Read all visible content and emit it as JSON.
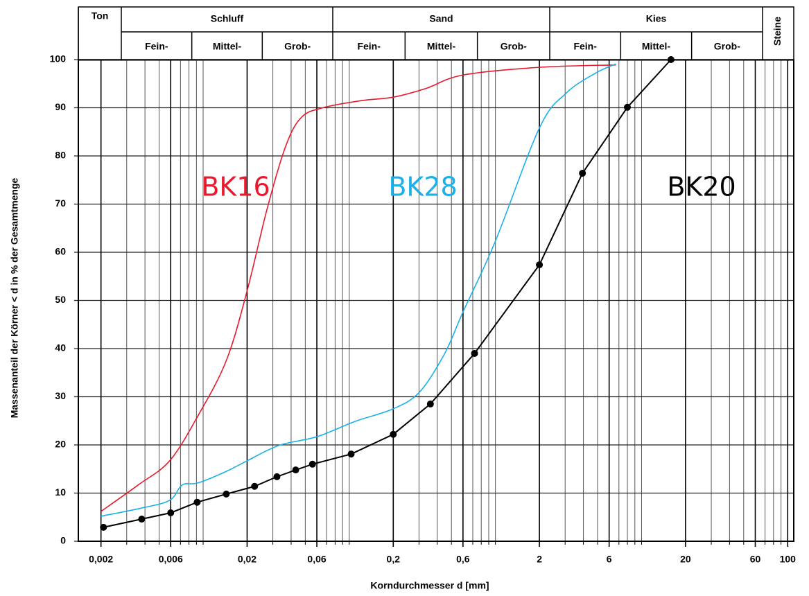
{
  "chart_data": {
    "type": "line",
    "x_label": "Korndurchmesser d [mm]",
    "y_label": "Massenanteil der Körner < d in % der Gesamtmenge",
    "log_x": true,
    "grid": true,
    "xlim": [
      0.0014,
      110
    ],
    "ylim": [
      0,
      100
    ],
    "xticks": [
      {
        "value": 0.002,
        "label": "0,002"
      },
      {
        "value": 0.006,
        "label": "0,006"
      },
      {
        "value": 0.02,
        "label": "0,02"
      },
      {
        "value": 0.06,
        "label": "0,06"
      },
      {
        "value": 0.2,
        "label": "0,2"
      },
      {
        "value": 0.6,
        "label": "0,6"
      },
      2,
      6,
      20,
      60,
      100
    ],
    "yticks": [
      0,
      10,
      20,
      30,
      40,
      50,
      60,
      70,
      80,
      90,
      100
    ],
    "soil_classes": [
      {
        "name": "Ton"
      },
      {
        "name": "Schluff",
        "subclasses": [
          "Fein-",
          "Mittel-",
          "Grob-"
        ]
      },
      {
        "name": "Sand",
        "subclasses": [
          "Fein-",
          "Mittel-",
          "Grob-"
        ]
      },
      {
        "name": "Kies",
        "subclasses": [
          "Fein-",
          "Mittel-",
          "Grob-"
        ]
      },
      {
        "name": "Steine"
      }
    ],
    "series": [
      {
        "name": "BK16",
        "color": "#e8192c",
        "markers": false,
        "x": [
          0.002,
          0.0036,
          0.0059,
          0.0092,
          0.0144,
          0.02,
          0.0274,
          0.0367,
          0.047,
          0.066,
          0.122,
          0.2,
          0.334,
          0.6,
          2,
          6.67
        ],
        "values": [
          6.2,
          11.7,
          16.7,
          26,
          37.5,
          52,
          69,
          82,
          88,
          90,
          91.5,
          92.2,
          94,
          96.8,
          98.4,
          98.9
        ]
      },
      {
        "name": "BK28",
        "color": "#1ab0e8",
        "markers": false,
        "x": [
          0.002,
          0.0038,
          0.0059,
          0.0072,
          0.0092,
          0.0144,
          0.02,
          0.033,
          0.06,
          0.11,
          0.2,
          0.303,
          0.45,
          0.6,
          0.99,
          2,
          3.04,
          4.78,
          6.67
        ],
        "values": [
          5.2,
          6.9,
          8.5,
          11.7,
          12.1,
          14.5,
          16.7,
          19.9,
          21.7,
          24.9,
          27.5,
          31,
          39,
          47.6,
          62,
          85.8,
          93,
          97.1,
          99.1
        ]
      },
      {
        "name": "BK20",
        "color": "#000000",
        "markers": true,
        "x": [
          0.00208,
          0.0038,
          0.006,
          0.0091,
          0.0144,
          0.0225,
          0.032,
          0.043,
          0.056,
          0.103,
          0.2,
          0.359,
          0.72,
          2,
          3.94,
          8,
          15.9
        ],
        "values": [
          2.9,
          4.6,
          5.9,
          8.1,
          9.8,
          11.4,
          13.4,
          14.8,
          16,
          18.1,
          22.2,
          28.5,
          39,
          57.4,
          76.4,
          90.1,
          100
        ]
      }
    ]
  }
}
